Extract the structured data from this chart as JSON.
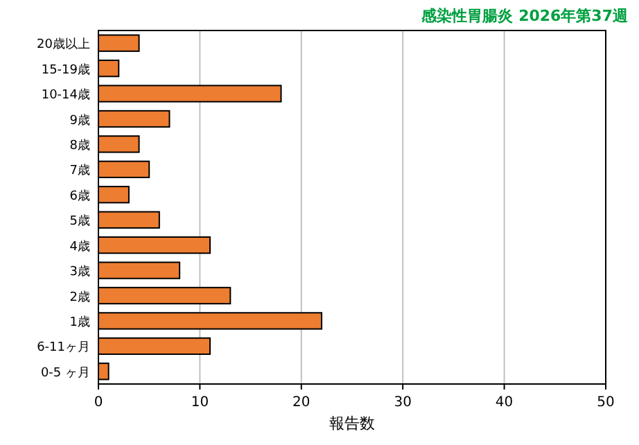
{
  "chart_data": {
    "type": "bar",
    "orientation": "horizontal",
    "title": "感染性胃腸炎 2026年第37週",
    "xlabel": "報告数",
    "categories": [
      "20歳以上",
      "15-19歳",
      "10-14歳",
      "9歳",
      "8歳",
      "7歳",
      "6歳",
      "5歳",
      "4歳",
      "3歳",
      "2歳",
      "1歳",
      "6-11ヶ月",
      "0-5 ヶ月"
    ],
    "values": [
      4,
      2,
      18,
      7,
      4,
      5,
      3,
      6,
      11,
      8,
      13,
      22,
      11,
      1
    ],
    "color": "#ed7d31",
    "xlim": [
      0,
      50
    ],
    "xticks": [
      0,
      10,
      20,
      30,
      40,
      50
    ],
    "grid": "x"
  }
}
